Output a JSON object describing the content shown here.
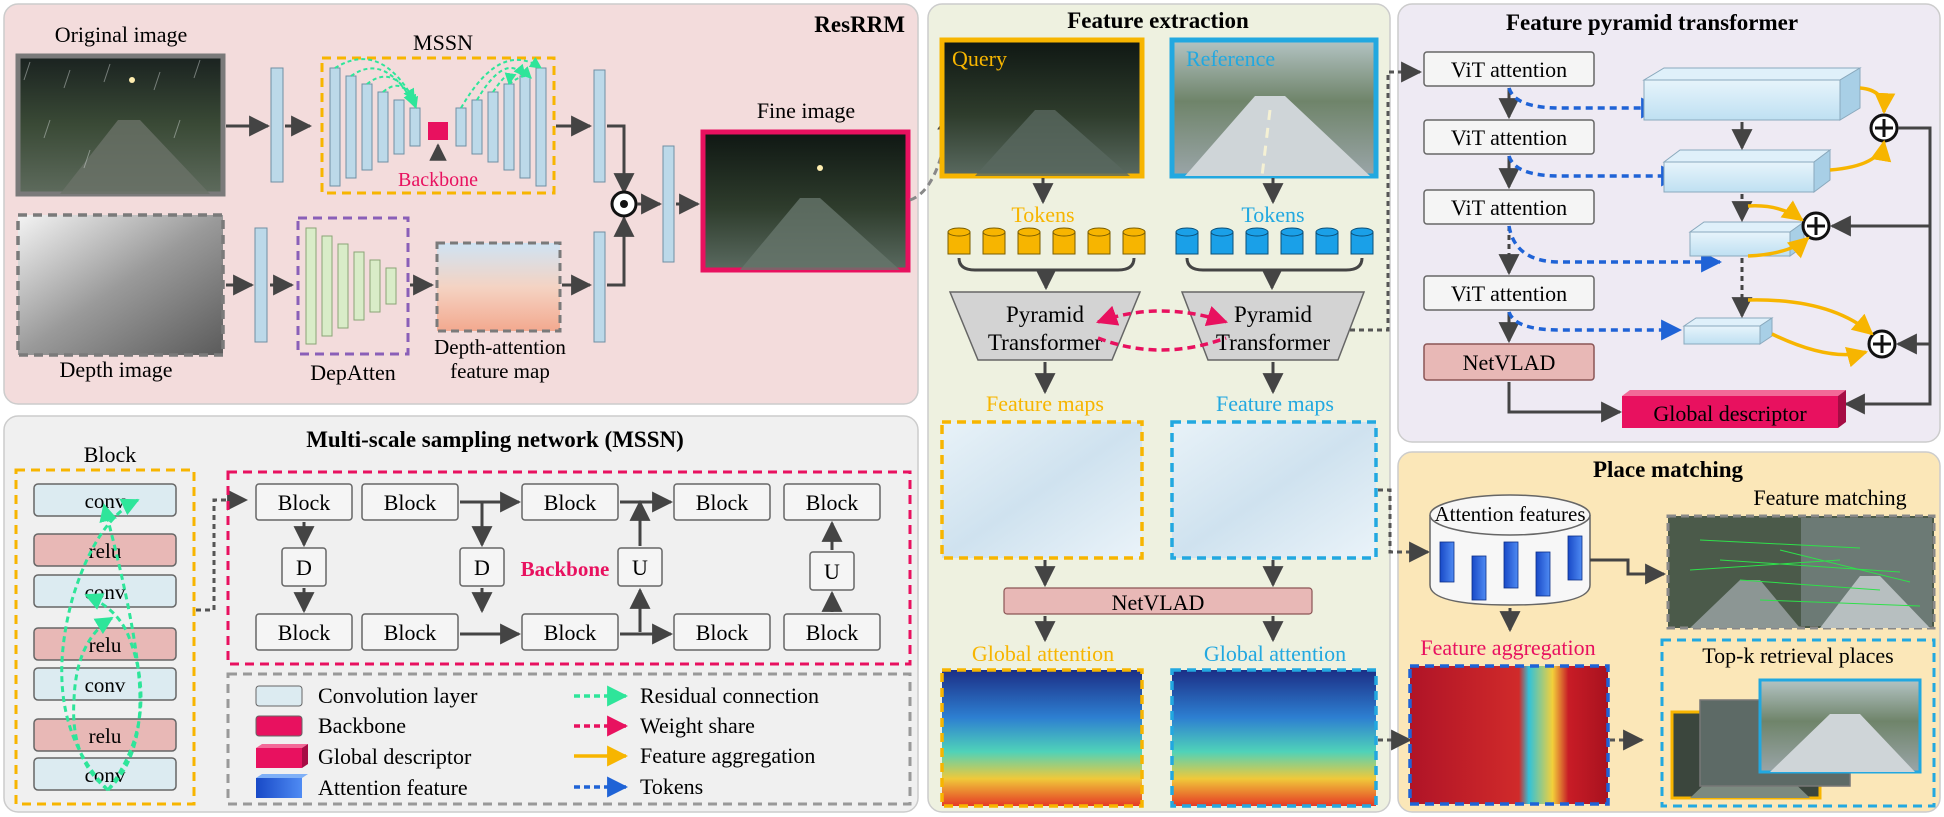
{
  "resrrm": {
    "title": "ResRRM",
    "original_image": "Original image",
    "mssn": "MSSN",
    "backbone": "Backbone",
    "fine_image": "Fine image",
    "depth_image": "Depth image",
    "depatten": "DepAtten",
    "dafm_line1": "Depth-attention",
    "dafm_line2": "feature map"
  },
  "feature_extraction": {
    "title": "Feature extraction",
    "query": "Query",
    "reference": "Reference",
    "tokens": "Tokens",
    "pyramid": "Pyramid",
    "transformer": "Transformer",
    "feature_maps": "Feature maps",
    "netvlad": "NetVLAD",
    "global_attention": "Global attention"
  },
  "fpt": {
    "title": "Feature pyramid transformer",
    "vit": "ViT attention",
    "netvlad": "NetVLAD",
    "global_descriptor": "Global descriptor"
  },
  "mssn_panel": {
    "title": "Multi-scale sampling network (MSSN)",
    "block_label": "Block",
    "conv": "conv",
    "relu": "relu",
    "block": "Block",
    "d": "D",
    "u": "U",
    "backbone": "Backbone"
  },
  "legend": {
    "items": [
      {
        "label": "Convolution layer",
        "color": "#dcebf1"
      },
      {
        "label": "Backbone",
        "color": "#e8115f"
      },
      {
        "label": "Global descriptor",
        "color": "#e8115f"
      },
      {
        "label": "Attention feature",
        "color": "#2f6fe0"
      },
      {
        "label": "Residual connection",
        "color": "#2ee59a"
      },
      {
        "label": "Weight share",
        "color": "#e8115f"
      },
      {
        "label": "Feature aggregation",
        "color": "#f7b500"
      },
      {
        "label": "Tokens",
        "color": "#1f63d6"
      }
    ]
  },
  "place_matching": {
    "title": "Place matching",
    "attention_features": "Attention features",
    "feature_matching": "Feature matching",
    "feature_aggregation": "Feature aggregation",
    "topk": "Top-k retrieval places"
  },
  "colors": {
    "resrrm_bg": "#f3dcdc",
    "feature_bg": "#eef1e0",
    "fpt_bg": "#eeeaf3",
    "mssn_bg": "#f0f0f0",
    "place_bg": "#fbe7b8",
    "accent_pink": "#e8115f",
    "accent_yellow": "#f7b500",
    "accent_blue": "#22a8e0"
  }
}
